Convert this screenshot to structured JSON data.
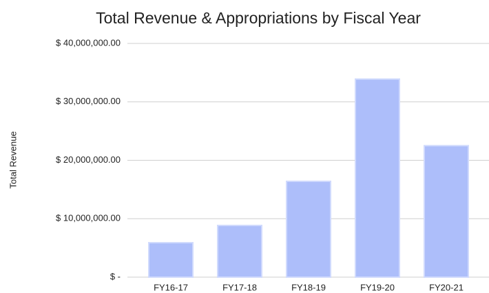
{
  "chart_data": {
    "type": "bar",
    "title": "Total Revenue & Appropriations by Fiscal Year",
    "y_label": "Total Revenue",
    "categories": [
      "FY16-17",
      "FY17-18",
      "FY18-19",
      "FY19-20",
      "FY20-21"
    ],
    "values": [
      5900000,
      8850000,
      16400000,
      33900000,
      22500000
    ],
    "color": "#adbefa",
    "ylim": [
      0,
      40000000
    ],
    "yticks": [
      {
        "value": 0,
        "label": "$ -"
      },
      {
        "value": 10000000,
        "label": "$ 10,000,000.00"
      },
      {
        "value": 20000000,
        "label": "$ 20,000,000.00"
      },
      {
        "value": 30000000,
        "label": "$ 30,000,000.00"
      },
      {
        "value": 40000000,
        "label": "$ 40,000,000.00"
      }
    ],
    "grid": true
  }
}
